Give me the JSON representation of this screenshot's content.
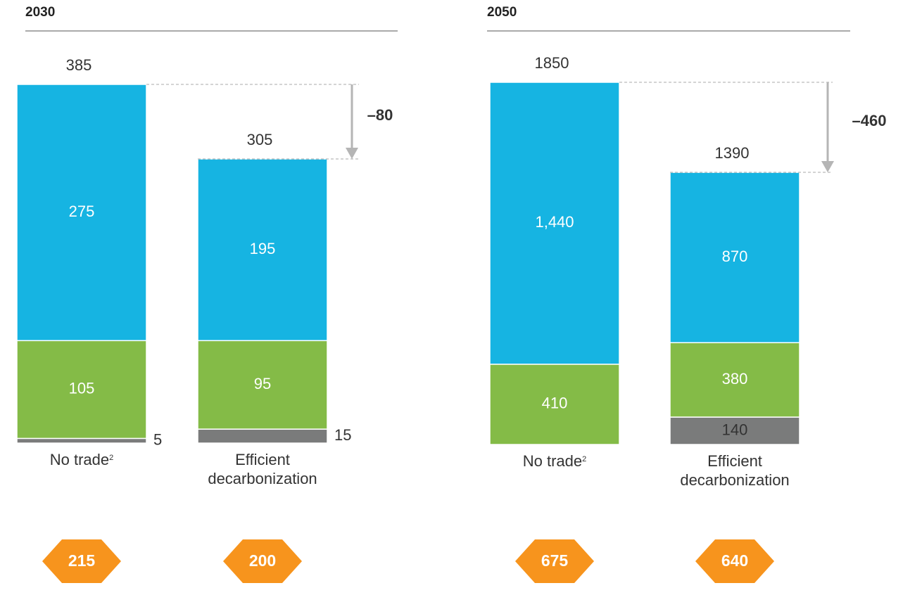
{
  "chart_data": [
    {
      "type": "bar",
      "stacked": true,
      "title": "2030",
      "categories": [
        "No trade",
        "Efficient decarbonization"
      ],
      "category_notes": [
        "2",
        null
      ],
      "ylim": [
        0,
        385
      ],
      "series": [
        {
          "color": "#7a7b7b",
          "values": [
            5,
            15
          ]
        },
        {
          "color": "#84bb47",
          "values": [
            105,
            95
          ]
        },
        {
          "color": "#16b4e2",
          "values": [
            275,
            195
          ]
        }
      ],
      "totals": [
        385,
        305
      ],
      "delta": {
        "value": -80,
        "label": "–80"
      },
      "hexagon_values": [
        215,
        200
      ],
      "hexagon_color": "#f7941d"
    },
    {
      "type": "bar",
      "stacked": true,
      "title": "2050",
      "categories": [
        "No trade",
        "Efficient decarbonization"
      ],
      "category_notes": [
        "2",
        null
      ],
      "ylim": [
        0,
        1850
      ],
      "series": [
        {
          "color": "#7a7b7b",
          "values": [
            null,
            140
          ]
        },
        {
          "color": "#84bb47",
          "values": [
            410,
            380
          ]
        },
        {
          "color": "#16b4e2",
          "values": [
            1440,
            870
          ],
          "value_labels": [
            "1,440",
            "870"
          ]
        }
      ],
      "totals": [
        1850,
        1390
      ],
      "delta": {
        "value": -460,
        "label": "–460"
      },
      "hexagon_values": [
        675,
        640
      ],
      "hexagon_color": "#f7941d"
    }
  ]
}
